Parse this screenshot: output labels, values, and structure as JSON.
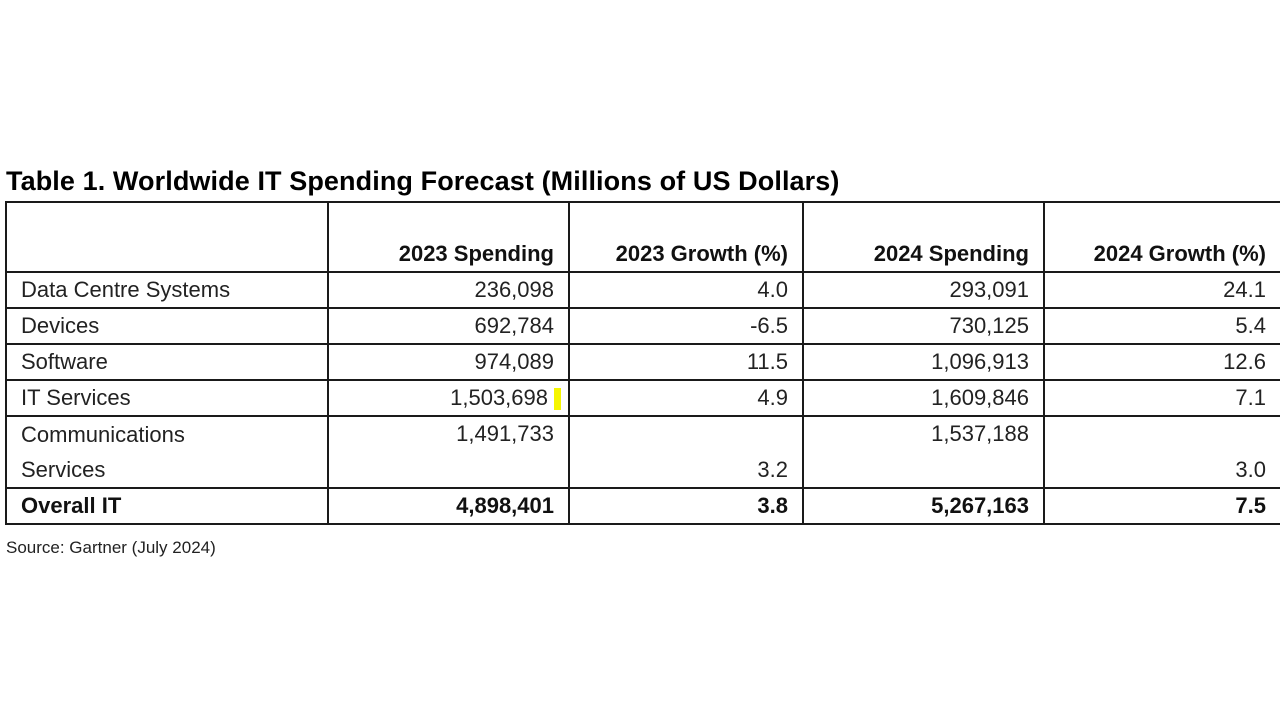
{
  "title": "Table 1. Worldwide IT Spending Forecast (Millions of US Dollars)",
  "table": {
    "headers": [
      "",
      "2023 Spending",
      "2023 Growth (%)",
      "2024 Spending",
      "2024 Growth (%)"
    ],
    "rows": [
      {
        "segment": "Data Centre Systems",
        "spending_2023": "236,098",
        "growth_2023": "4.0",
        "spending_2024": "293,091",
        "growth_2024": "24.1"
      },
      {
        "segment": "Devices",
        "spending_2023": "692,784",
        "growth_2023": "-6.5",
        "spending_2024": "730,125",
        "growth_2024": "5.4"
      },
      {
        "segment": "Software",
        "spending_2023": "974,089",
        "growth_2023": "11.5",
        "spending_2024": "1,096,913",
        "growth_2024": "12.6"
      },
      {
        "segment": "IT Services",
        "spending_2023": "1,503,698",
        "growth_2023": "4.9",
        "spending_2024": "1,609,846",
        "growth_2024": "7.1"
      },
      {
        "segment_line1": "Communications",
        "segment_line2": "Services",
        "spending_2023": "1,491,733",
        "growth_2023": "3.2",
        "spending_2024": "1,537,188",
        "growth_2024": "3.0"
      }
    ],
    "total": {
      "segment": "Overall IT",
      "spending_2023": "4,898,401",
      "growth_2023": "3.8",
      "spending_2024": "5,267,163",
      "growth_2024": "7.5"
    }
  },
  "source": "Source: Gartner (July 2024)",
  "colors": {
    "highlight": "#f5f500",
    "border": "#1a1a1a"
  }
}
